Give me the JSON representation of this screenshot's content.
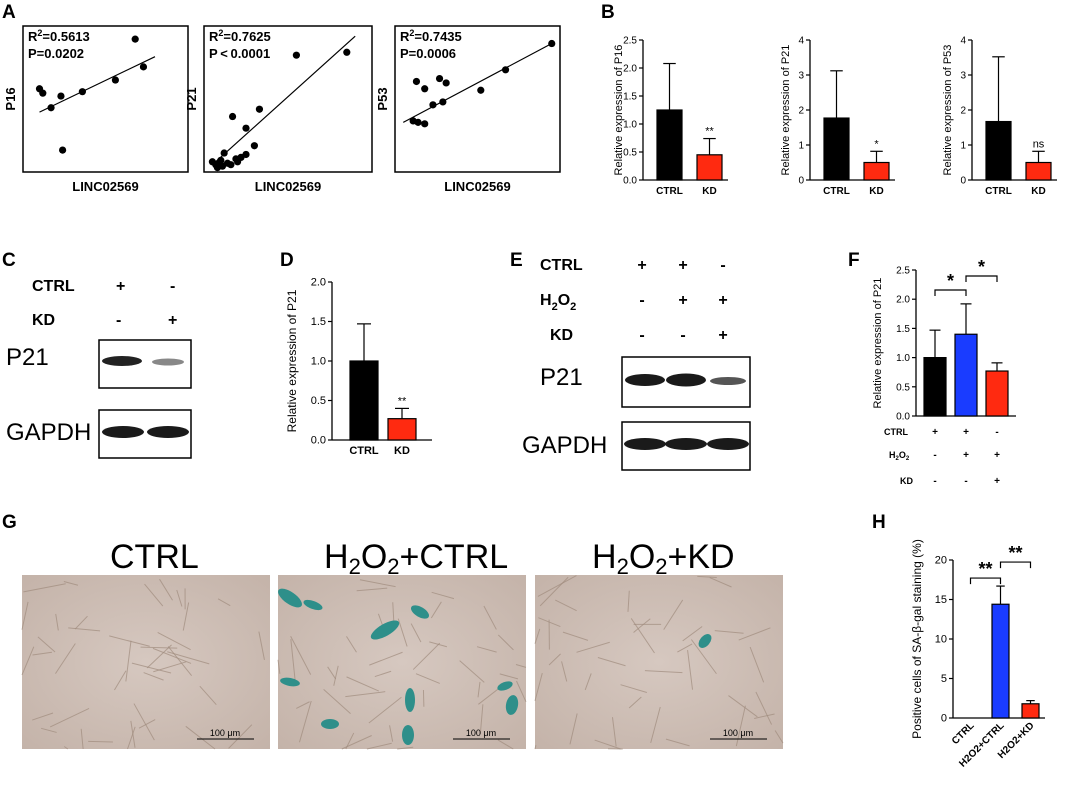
{
  "panels": {
    "A": {
      "letter": "A",
      "plots": [
        {
          "ylabel": "P16",
          "xlabel": "LINC02569",
          "r2_prefix": "R",
          "r2_value": "=0.5613",
          "p_text": "P=0.0202"
        },
        {
          "ylabel": "P21",
          "xlabel": "LINC02569",
          "r2_prefix": "R",
          "r2_value": "=0.7625",
          "p_text": "P < 0.0001"
        },
        {
          "ylabel": "P53",
          "xlabel": "LINC02569",
          "r2_prefix": "R",
          "r2_value": "=0.7435",
          "p_text": "P=0.0006"
        }
      ],
      "superscript": "2"
    },
    "B": {
      "letter": "B"
    },
    "C": {
      "letter": "C",
      "rows": [
        {
          "label": "CTRL",
          "signs": [
            "+",
            "-"
          ]
        },
        {
          "label": "KD",
          "signs": [
            "-",
            "+"
          ]
        }
      ],
      "blots": [
        "P21",
        "GAPDH"
      ]
    },
    "D": {
      "letter": "D"
    },
    "E": {
      "letter": "E",
      "rows": [
        {
          "label": "CTRL",
          "signs": [
            "+",
            "+",
            "-"
          ]
        },
        {
          "label_main": "H",
          "label_sub": "2",
          "label_mid": "O",
          "label_sub2": "2",
          "signs": [
            "-",
            "+",
            "+"
          ]
        },
        {
          "label": "KD",
          "signs": [
            "-",
            "-",
            "+"
          ]
        }
      ],
      "blots": [
        "P21",
        "GAPDH"
      ]
    },
    "F": {
      "letter": "F",
      "rows": [
        {
          "label": "CTRL",
          "signs": [
            "+",
            "+",
            "-"
          ]
        },
        {
          "label_main": "H",
          "label_sub": "2",
          "label_mid": "O",
          "label_sub2": "2",
          "signs": [
            "-",
            "+",
            "+"
          ]
        },
        {
          "label": "KD",
          "signs": [
            "-",
            "-",
            "+"
          ]
        }
      ]
    },
    "G": {
      "letter": "G",
      "titles": [
        {
          "main": "CTRL"
        },
        {
          "pre": "H",
          "s1": "2",
          "mid": "O",
          "s2": "2",
          "post": "+CTRL"
        },
        {
          "pre": "H",
          "s1": "2",
          "mid": "O",
          "s2": "2",
          "post": "+KD"
        }
      ],
      "scalebar": "100 μm"
    },
    "H": {
      "letter": "H"
    }
  },
  "chart_data": [
    {
      "id": "A1",
      "type": "scatter",
      "xlabel": "LINC02569",
      "ylabel": "P16",
      "x": [
        0.1,
        0.12,
        0.17,
        0.23,
        0.24,
        0.36,
        0.56,
        0.68,
        0.73
      ],
      "y": [
        0.57,
        0.54,
        0.44,
        0.52,
        0.15,
        0.55,
        0.63,
        0.91,
        0.72
      ],
      "fit": {
        "x": [
          0.1,
          0.8
        ],
        "y": [
          0.41,
          0.79
        ]
      }
    },
    {
      "id": "A2",
      "type": "scatter",
      "xlabel": "LINC02569",
      "ylabel": "P21",
      "x": [
        0.05,
        0.07,
        0.08,
        0.09,
        0.1,
        0.11,
        0.14,
        0.16,
        0.19,
        0.22,
        0.25,
        0.3,
        0.17,
        0.25,
        0.33,
        0.55,
        0.85,
        0.12,
        0.2
      ],
      "y": [
        0.07,
        0.05,
        0.03,
        0.06,
        0.08,
        0.04,
        0.06,
        0.05,
        0.09,
        0.1,
        0.12,
        0.18,
        0.38,
        0.3,
        0.43,
        0.8,
        0.82,
        0.13,
        0.07
      ],
      "fit": {
        "x": [
          0.05,
          0.9
        ],
        "y": [
          0.05,
          0.93
        ]
      }
    },
    {
      "id": "A3",
      "type": "scatter",
      "xlabel": "LINC02569",
      "ylabel": "P53",
      "x": [
        0.11,
        0.14,
        0.18,
        0.23,
        0.27,
        0.31,
        0.29,
        0.13,
        0.18,
        0.52,
        0.67,
        0.95
      ],
      "y": [
        0.35,
        0.34,
        0.33,
        0.46,
        0.64,
        0.61,
        0.48,
        0.62,
        0.57,
        0.56,
        0.7,
        0.88
      ],
      "fit": {
        "x": [
          0.05,
          0.95
        ],
        "y": [
          0.34,
          0.88
        ]
      }
    },
    {
      "id": "B1",
      "type": "bar",
      "categories": [
        "CTRL",
        "KD"
      ],
      "values": [
        1.25,
        0.45
      ],
      "errors": [
        0.83,
        0.29
      ],
      "colors": [
        "#000000",
        "#ff2a10"
      ],
      "ylabel": "Relative expression of P16",
      "ylim": [
        0,
        2.5
      ],
      "yticks": [
        "0.0",
        "0.5",
        "1.0",
        "1.5",
        "2.0",
        "2.5"
      ],
      "sig": [
        "",
        "**"
      ]
    },
    {
      "id": "B2",
      "type": "bar",
      "categories": [
        "CTRL",
        "KD"
      ],
      "values": [
        1.77,
        0.5
      ],
      "errors": [
        1.35,
        0.32
      ],
      "colors": [
        "#000000",
        "#ff2a10"
      ],
      "ylabel": "Relative expression of P21",
      "ylim": [
        0,
        4
      ],
      "yticks": [
        "0",
        "1",
        "2",
        "3",
        "4"
      ],
      "sig": [
        "",
        "*"
      ]
    },
    {
      "id": "B3",
      "type": "bar",
      "categories": [
        "CTRL",
        "KD"
      ],
      "values": [
        1.67,
        0.5
      ],
      "errors": [
        1.85,
        0.32
      ],
      "colors": [
        "#000000",
        "#ff2a10"
      ],
      "ylabel": "Relative expression of P53",
      "ylim": [
        0,
        4
      ],
      "yticks": [
        "0",
        "1",
        "2",
        "3",
        "4"
      ],
      "sig": [
        "",
        "ns"
      ]
    },
    {
      "id": "D",
      "type": "bar",
      "categories": [
        "CTRL",
        "KD"
      ],
      "values": [
        1.0,
        0.27
      ],
      "errors": [
        0.47,
        0.13
      ],
      "colors": [
        "#000000",
        "#ff2a10"
      ],
      "ylabel": "Relative expression of P21",
      "ylim": [
        0,
        2.0
      ],
      "yticks": [
        "0.0",
        "0.5",
        "1.0",
        "1.5",
        "2.0"
      ],
      "sig": [
        "",
        "**"
      ]
    },
    {
      "id": "F",
      "type": "bar",
      "categories": [
        "",
        "",
        ""
      ],
      "values": [
        1.0,
        1.4,
        0.77
      ],
      "errors": [
        0.47,
        0.52,
        0.14
      ],
      "colors": [
        "#000000",
        "#1a3cff",
        "#ff2a10"
      ],
      "ylabel": "Relative expression of P21",
      "ylim": [
        0,
        2.5
      ],
      "yticks": [
        "0.0",
        "0.5",
        "1.0",
        "1.5",
        "2.0",
        "2.5"
      ],
      "brackets": [
        {
          "from": 0,
          "to": 1,
          "label": "*"
        },
        {
          "from": 1,
          "to": 2,
          "label": "*"
        }
      ]
    },
    {
      "id": "H",
      "type": "bar",
      "categories": [
        "CTRL",
        "H2O2+CTRL",
        "H2O2+KD"
      ],
      "values": [
        0,
        14.4,
        1.8
      ],
      "errors": [
        0,
        2.3,
        0.4
      ],
      "colors": [
        "#000000",
        "#1a3cff",
        "#ff2a10"
      ],
      "ylabel": "Positive cells of SA-β-gal staining (%)",
      "ylim": [
        0,
        20
      ],
      "yticks": [
        "0",
        "5",
        "10",
        "15",
        "20"
      ],
      "brackets": [
        {
          "from": 0,
          "to": 1,
          "label": "**"
        },
        {
          "from": 1,
          "to": 2,
          "label": "**"
        }
      ]
    }
  ]
}
